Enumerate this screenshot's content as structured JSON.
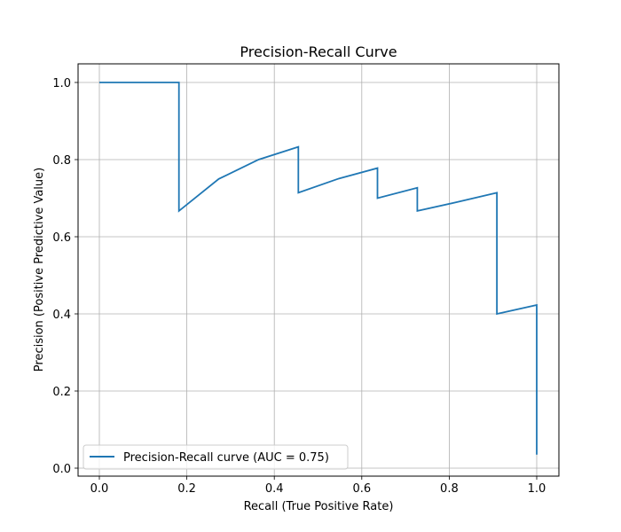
{
  "chart_data": {
    "type": "line",
    "title": "Precision-Recall Curve",
    "xlabel": "Recall (True Positive Rate)",
    "ylabel": "Precision (Positive Predictive Value)",
    "xlim": [
      -0.05,
      1.05
    ],
    "ylim": [
      -0.0,
      1.05
    ],
    "x_ticks": [
      0.0,
      0.2,
      0.4,
      0.6,
      0.8,
      1.0
    ],
    "y_ticks": [
      0.0,
      0.2,
      0.4,
      0.6,
      0.8,
      1.0
    ],
    "x_tick_labels": [
      "0.0",
      "0.2",
      "0.4",
      "0.6",
      "0.8",
      "1.0"
    ],
    "y_tick_labels": [
      "0.0",
      "0.2",
      "0.4",
      "0.6",
      "0.8",
      "1.0"
    ],
    "grid": true,
    "legend_position": "lower-left",
    "series": [
      {
        "name": "Precision-Recall curve (AUC = 0.75)",
        "color": "#1f77b4",
        "x": [
          0.0,
          0.182,
          0.182,
          0.273,
          0.364,
          0.455,
          0.455,
          0.545,
          0.636,
          0.636,
          0.727,
          0.727,
          0.818,
          0.909,
          0.909,
          1.0,
          1.0
        ],
        "y": [
          1.0,
          1.0,
          0.667,
          0.75,
          0.8,
          0.833,
          0.714,
          0.75,
          0.778,
          0.7,
          0.727,
          0.667,
          0.69,
          0.714,
          0.4,
          0.423,
          0.035
        ]
      }
    ]
  }
}
